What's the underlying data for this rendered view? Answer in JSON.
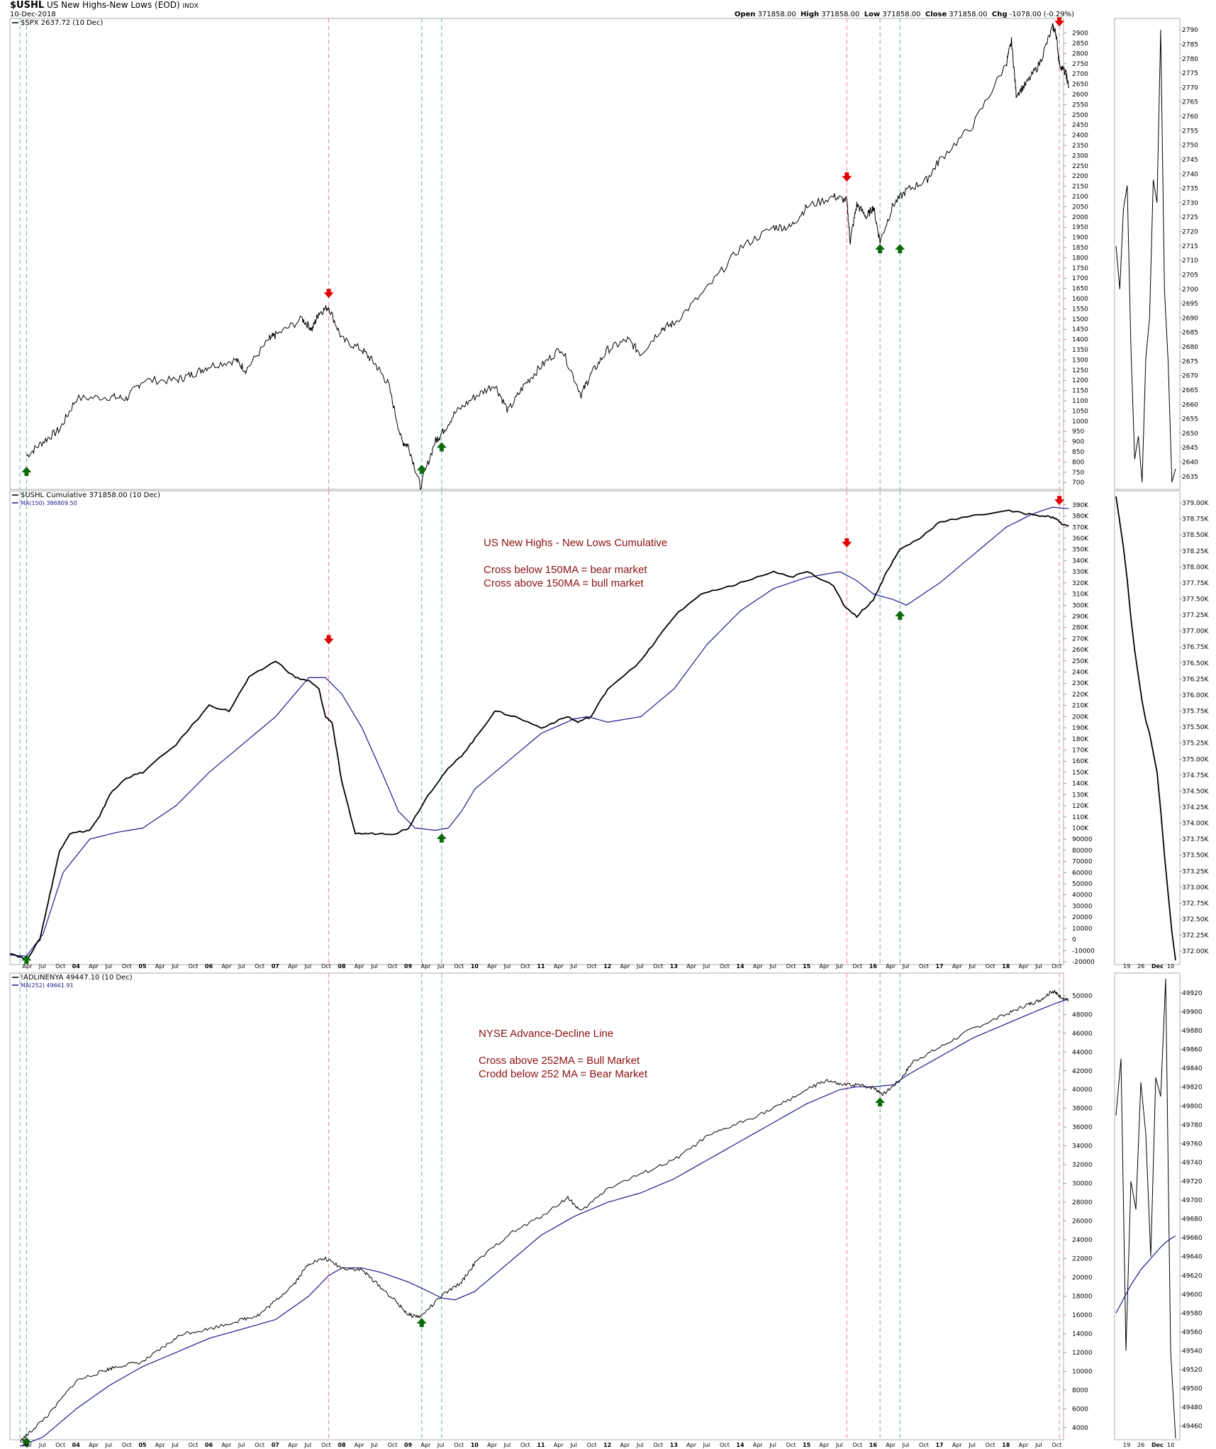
{
  "header": {
    "symbol": "$USHL",
    "name": "US New Highs-New Lows (EOD)",
    "exchange": "INDX",
    "date": "10-Dec-2018",
    "open_label": "Open",
    "open": "371858.00",
    "high_label": "High",
    "high": "371858.00",
    "low_label": "Low",
    "low": "371858.00",
    "close_label": "Close",
    "close": "371858.00",
    "chg_label": "Chg",
    "chg": "-1078.00 (-0.29%)"
  },
  "legends": {
    "p1": "$SPX 2637.72 (10 Dec)",
    "p2a": "$USHL Cumulative 371858.00 (10 Dec)",
    "p2b": "MA(150) 386809.50",
    "p3a": "!ADLINENYA 49447.10 (10 Dec)",
    "p3b": "MA(252) 49661.91"
  },
  "annotations": {
    "p2": [
      "US New Highs - New Lows Cumulative",
      "",
      "Cross below 150MA =  bear market",
      "Cross above 150MA = bull market"
    ],
    "p3": [
      "NYSE Advance-Decline Line",
      "",
      "Cross above 252MA = Bull Market",
      "Crodd below 252 MA = Bear Market"
    ]
  },
  "colors": {
    "price": "#000000",
    "ma": "#1a1a8c",
    "red_line": "#e08a8a",
    "blue_line": "#6fa9b4",
    "up_arrow": "#0b6a0b",
    "down_arrow": "#e00000",
    "annotation": "#8b1010"
  },
  "chart_data": [
    {
      "type": "line",
      "name": "SPX",
      "title": "$SPX 2637.72 (10 Dec)",
      "x": [
        2003.25,
        2003.5,
        2003.75,
        2004.0,
        2004.5,
        2004.75,
        2005.0,
        2005.5,
        2005.75,
        2006.0,
        2006.4,
        2006.55,
        2006.9,
        2007.0,
        2007.4,
        2007.55,
        2007.65,
        2007.8,
        2008.0,
        2008.3,
        2008.5,
        2008.7,
        2008.9,
        2009.0,
        2009.18,
        2009.4,
        2009.5,
        2009.7,
        2010.0,
        2010.3,
        2010.5,
        2010.75,
        2011.0,
        2011.3,
        2011.6,
        2011.75,
        2012.0,
        2012.3,
        2012.5,
        2012.8,
        2013.0,
        2013.5,
        2014.0,
        2014.5,
        2014.75,
        2015.0,
        2015.4,
        2015.6,
        2015.65,
        2015.75,
        2015.9,
        2016.0,
        2016.1,
        2016.3,
        2016.5,
        2016.8,
        2017.0,
        2017.5,
        2018.0,
        2018.08,
        2018.15,
        2018.3,
        2018.5,
        2018.7,
        2018.75,
        2018.8,
        2018.9,
        2018.94
      ],
      "y": [
        830,
        900,
        960,
        1110,
        1120,
        1110,
        1200,
        1200,
        1230,
        1270,
        1300,
        1250,
        1400,
        1420,
        1500,
        1450,
        1530,
        1560,
        1400,
        1350,
        1280,
        1180,
        900,
        880,
        680,
        900,
        940,
        1040,
        1120,
        1180,
        1050,
        1180,
        1270,
        1360,
        1130,
        1230,
        1350,
        1400,
        1330,
        1450,
        1480,
        1650,
        1850,
        1950,
        1950,
        2050,
        2100,
        2080,
        1880,
        2060,
        2000,
        2050,
        1880,
        2060,
        2130,
        2180,
        2280,
        2450,
        2750,
        2860,
        2600,
        2650,
        2750,
        2930,
        2900,
        2750,
        2700,
        2637.72
      ],
      "ylim": [
        680,
        2930
      ],
      "ticks": [
        700,
        750,
        800,
        850,
        900,
        950,
        1000,
        1050,
        1100,
        1150,
        1200,
        1250,
        1300,
        1350,
        1400,
        1450,
        1500,
        1550,
        1600,
        1650,
        1700,
        1750,
        1800,
        1850,
        1900,
        1950,
        2000,
        2050,
        2100,
        2150,
        2200,
        2250,
        2300,
        2350,
        2400,
        2450,
        2500,
        2550,
        2600,
        2650,
        2700,
        2750,
        2800,
        2850,
        2900
      ]
    },
    {
      "type": "line",
      "name": "USHL Cumulative",
      "title": "$USHL Cumulative 371858.00 (10 Dec)",
      "x": [
        2003.0,
        2003.25,
        2003.45,
        2003.6,
        2003.75,
        2003.9,
        2004.2,
        2004.35,
        2004.5,
        2004.75,
        2005.0,
        2005.5,
        2006.0,
        2006.3,
        2006.6,
        2007.0,
        2007.3,
        2007.5,
        2007.65,
        2007.75,
        2007.85,
        2008.0,
        2008.2,
        2008.5,
        2008.8,
        2009.0,
        2009.3,
        2009.55,
        2009.8,
        2010.0,
        2010.3,
        2010.6,
        2011.0,
        2011.4,
        2011.55,
        2011.75,
        2012.0,
        2012.5,
        2012.75,
        2013.0,
        2013.4,
        2013.75,
        2014.0,
        2014.5,
        2014.75,
        2015.0,
        2015.4,
        2015.55,
        2015.75,
        2016.0,
        2016.2,
        2016.4,
        2016.7,
        2017.0,
        2017.5,
        2018.0,
        2018.3,
        2018.6,
        2018.75,
        2018.85,
        2018.94
      ],
      "y": [
        -12000,
        -18000,
        0,
        40000,
        80000,
        95000,
        98000,
        110000,
        130000,
        145000,
        150000,
        175000,
        210000,
        205000,
        235000,
        250000,
        235000,
        232000,
        225000,
        200000,
        195000,
        140000,
        95000,
        95000,
        95000,
        100000,
        130000,
        150000,
        165000,
        180000,
        205000,
        200000,
        190000,
        200000,
        195000,
        200000,
        225000,
        250000,
        270000,
        290000,
        310000,
        315000,
        320000,
        330000,
        325000,
        330000,
        318000,
        300000,
        290000,
        305000,
        330000,
        350000,
        360000,
        375000,
        380000,
        385000,
        382000,
        380000,
        378000,
        372000,
        371858
      ],
      "ylim": [
        -20000,
        395000
      ],
      "ticks": [
        -20000,
        -10000,
        0,
        10000,
        20000,
        30000,
        40000,
        50000,
        60000,
        70000,
        80000,
        90000,
        100000,
        110000,
        120000,
        130000,
        140000,
        150000,
        160000,
        170000,
        180000,
        190000,
        200000,
        210000,
        220000,
        230000,
        240000,
        250000,
        260000,
        270000,
        280000,
        290000,
        300000,
        310000,
        320000,
        330000,
        340000,
        350000,
        360000,
        370000,
        380000,
        390000
      ],
      "tick_labels": [
        "-20000",
        "-10000",
        "0",
        "10000",
        "20000",
        "30000",
        "40000",
        "50000",
        "60000",
        "70000",
        "80000",
        "90000",
        "100K",
        "110K",
        "120K",
        "130K",
        "140K",
        "150K",
        "160K",
        "170K",
        "180K",
        "190K",
        "200K",
        "210K",
        "220K",
        "230K",
        "240K",
        "250K",
        "260K",
        "270K",
        "280K",
        "290K",
        "300K",
        "310K",
        "320K",
        "330K",
        "340K",
        "350K",
        "360K",
        "370K",
        "380K",
        "390K"
      ],
      "ma": {
        "name": "MA(150)",
        "x": [
          2003.0,
          2003.25,
          2003.5,
          2003.8,
          2004.2,
          2004.6,
          2005.0,
          2005.5,
          2006.0,
          2006.5,
          2007.0,
          2007.5,
          2007.75,
          2008.0,
          2008.3,
          2008.6,
          2008.85,
          2009.1,
          2009.4,
          2009.6,
          2009.8,
          2010.0,
          2010.5,
          2011.0,
          2011.5,
          2011.7,
          2012.0,
          2012.5,
          2013.0,
          2013.5,
          2014.0,
          2014.5,
          2015.0,
          2015.5,
          2015.75,
          2016.0,
          2016.3,
          2016.5,
          2016.75,
          2017.0,
          2017.5,
          2018.0,
          2018.4,
          2018.7,
          2018.85,
          2018.94
        ],
        "y": [
          -14000,
          -15000,
          5000,
          60000,
          90000,
          96000,
          100000,
          120000,
          150000,
          175000,
          200000,
          235000,
          235000,
          220000,
          190000,
          150000,
          115000,
          100000,
          98000,
          100000,
          115000,
          135000,
          160000,
          185000,
          198000,
          200000,
          195000,
          200000,
          225000,
          265000,
          295000,
          315000,
          325000,
          330000,
          322000,
          310000,
          305000,
          300000,
          310000,
          320000,
          345000,
          370000,
          382000,
          388000,
          387000,
          386809
        ]
      }
    },
    {
      "type": "line",
      "name": "ADLINENYA",
      "title": "!ADLINENYA 49447.10 (10 Dec)",
      "x": [
        2003.15,
        2003.3,
        2003.6,
        2004.0,
        2004.4,
        2004.6,
        2005.0,
        2005.3,
        2005.6,
        2006.0,
        2006.5,
        2006.75,
        2007.0,
        2007.3,
        2007.5,
        2007.75,
        2008.0,
        2008.3,
        2008.5,
        2008.8,
        2009.0,
        2009.18,
        2009.5,
        2009.8,
        2010.0,
        2010.5,
        2011.0,
        2011.4,
        2011.6,
        2012.0,
        2012.5,
        2013.0,
        2013.5,
        2014.0,
        2014.5,
        2015.0,
        2015.3,
        2015.5,
        2015.75,
        2016.0,
        2016.15,
        2016.4,
        2016.6,
        2017.0,
        2017.5,
        2018.0,
        2018.3,
        2018.5,
        2018.7,
        2018.8,
        2018.94
      ],
      "y": [
        2500,
        3500,
        5500,
        9000,
        10000,
        10500,
        11000,
        12500,
        14000,
        14500,
        15500,
        16000,
        17500,
        19500,
        21500,
        22000,
        21000,
        20800,
        19500,
        17500,
        16000,
        15800,
        18000,
        19500,
        21500,
        24500,
        26500,
        28500,
        27000,
        29500,
        31000,
        32500,
        35000,
        36500,
        38000,
        40000,
        41000,
        40500,
        40500,
        40200,
        39500,
        41000,
        43000,
        44500,
        46500,
        48000,
        49000,
        49500,
        50500,
        50000,
        49447
      ],
      "ylim": [
        3000,
        51500
      ],
      "ticks": [
        4000,
        6000,
        8000,
        10000,
        12000,
        14000,
        16000,
        18000,
        20000,
        22000,
        24000,
        26000,
        28000,
        30000,
        32000,
        34000,
        36000,
        38000,
        40000,
        42000,
        44000,
        46000,
        48000,
        50000
      ],
      "ma": {
        "name": "MA(252)",
        "x": [
          2003.15,
          2003.5,
          2004.0,
          2004.5,
          2005.0,
          2005.5,
          2006.0,
          2006.5,
          2007.0,
          2007.5,
          2007.8,
          2008.0,
          2008.3,
          2008.6,
          2009.0,
          2009.3,
          2009.5,
          2009.7,
          2010.0,
          2010.5,
          2011.0,
          2011.5,
          2012.0,
          2012.5,
          2013.0,
          2013.5,
          2014.0,
          2014.5,
          2015.0,
          2015.5,
          2015.75,
          2016.0,
          2016.3,
          2016.5,
          2017.0,
          2017.5,
          2018.0,
          2018.5,
          2018.75,
          2018.94
        ],
        "y": [
          2000,
          3000,
          6000,
          8500,
          10500,
          12000,
          13500,
          14500,
          15500,
          18000,
          20200,
          21000,
          21000,
          20500,
          19500,
          18500,
          17800,
          17600,
          18500,
          21500,
          24500,
          26500,
          28000,
          29000,
          30500,
          32500,
          34500,
          36500,
          38500,
          40000,
          40300,
          40300,
          40500,
          41500,
          43500,
          45500,
          47000,
          48500,
          49200,
          49662
        ]
      }
    },
    {
      "type": "line",
      "name": "SPX recent (side panel)",
      "x_labels": [
        "19",
        "26",
        "Dec",
        "10"
      ],
      "ticks": [
        2635,
        2640,
        2645,
        2650,
        2655,
        2660,
        2665,
        2670,
        2675,
        2680,
        2685,
        2690,
        2695,
        2700,
        2705,
        2710,
        2715,
        2720,
        2725,
        2730,
        2735,
        2740,
        2745,
        2750,
        2755,
        2760,
        2765,
        2770,
        2775,
        2780,
        2785,
        2790
      ],
      "ylim": [
        2632,
        2792
      ],
      "y": [
        2715,
        2700,
        2728,
        2736,
        2680,
        2641,
        2649,
        2633,
        2676,
        2690,
        2738,
        2730,
        2790,
        2700,
        2675,
        2633,
        2637.72
      ]
    },
    {
      "type": "line",
      "name": "USHL recent (side panel)",
      "x_labels": [
        "19",
        "26",
        "Dec",
        "10"
      ],
      "ticks": [
        372000,
        372250,
        372500,
        372750,
        373000,
        373250,
        373500,
        373750,
        374000,
        374250,
        374500,
        374750,
        375000,
        375250,
        375500,
        375750,
        376000,
        376250,
        376500,
        376750,
        377000,
        377250,
        377500,
        377750,
        378000,
        378250,
        378500,
        378750,
        379000
      ],
      "tick_labels": [
        "372.00K",
        "372.25K",
        "372.50K",
        "372.75K",
        "373.00K",
        "373.25K",
        "373.50K",
        "373.75K",
        "374.00K",
        "374.25K",
        "374.50K",
        "374.75K",
        "375.00K",
        "375.25K",
        "375.50K",
        "375.75K",
        "376.00K",
        "376.25K",
        "376.50K",
        "376.75K",
        "377.00K",
        "377.25K",
        "377.50K",
        "377.75K",
        "378.00K",
        "378.25K",
        "378.50K",
        "378.75K",
        "379.00K"
      ],
      "ylim": [
        371858,
        379100
      ],
      "y": [
        379100,
        378700,
        378300,
        377800,
        377200,
        376700,
        376300,
        375900,
        375600,
        375400,
        375100,
        374800,
        374200,
        373500,
        372900,
        372300,
        371858
      ]
    },
    {
      "type": "line",
      "name": "ADLINE recent (side panel)",
      "x_labels": [
        "19",
        "26",
        "Dec",
        "10"
      ],
      "ticks": [
        49460,
        49480,
        49500,
        49520,
        49540,
        49560,
        49580,
        49600,
        49620,
        49640,
        49660,
        49680,
        49700,
        49720,
        49740,
        49760,
        49780,
        49800,
        49820,
        49840,
        49860,
        49880,
        49900,
        49920
      ],
      "ylim": [
        49450,
        49935
      ],
      "y": [
        49790,
        49850,
        49540,
        49720,
        49690,
        49825,
        49770,
        49640,
        49830,
        49810,
        49935,
        49540,
        49447
      ],
      "ma_y": [
        49580,
        49590,
        49600,
        49610,
        49618,
        49626,
        49632,
        49638,
        49644,
        49650,
        49655,
        49659,
        49662
      ]
    }
  ],
  "x_axis": {
    "labels": [
      "Apr",
      "Jul",
      "Oct",
      "04",
      "Apr",
      "Jul",
      "Oct",
      "05",
      "Apr",
      "Jul",
      "Oct",
      "06",
      "Apr",
      "Jul",
      "Oct",
      "07",
      "Apr",
      "Jul",
      "Oct",
      "08",
      "Apr",
      "Jul",
      "Oct",
      "09",
      "Apr",
      "Jul",
      "Oct",
      "10",
      "Apr",
      "Jul",
      "Oct",
      "11",
      "Apr",
      "Jul",
      "Oct",
      "12",
      "Apr",
      "Jul",
      "Oct",
      "13",
      "Apr",
      "Jul",
      "Oct",
      "14",
      "Apr",
      "Jul",
      "Oct",
      "15",
      "Apr",
      "Jul",
      "Oct",
      "16",
      "Apr",
      "Jul",
      "Oct",
      "17",
      "Apr",
      "Jul",
      "Oct",
      "18",
      "Apr",
      "Jul",
      "Oct"
    ],
    "values": [
      2003.25,
      2003.5,
      2003.75,
      2004,
      2004.25,
      2004.5,
      2004.75,
      2005,
      2005.25,
      2005.5,
      2005.75,
      2006,
      2006.25,
      2006.5,
      2006.75,
      2007,
      2007.25,
      2007.5,
      2007.75,
      2008,
      2008.25,
      2008.5,
      2008.75,
      2009,
      2009.25,
      2009.5,
      2009.75,
      2010,
      2010.25,
      2010.5,
      2010.75,
      2011,
      2011.25,
      2011.5,
      2011.75,
      2012,
      2012.25,
      2012.5,
      2012.75,
      2013,
      2013.25,
      2013.5,
      2013.75,
      2014,
      2014.25,
      2014.5,
      2014.75,
      2015,
      2015.25,
      2015.5,
      2015.75,
      2016,
      2016.25,
      2016.5,
      2016.75,
      2017,
      2017.25,
      2017.5,
      2017.75,
      2018,
      2018.25,
      2018.5,
      2018.75
    ]
  },
  "markers": {
    "red_lines": [
      2007.8,
      2015.6,
      2018.8
    ],
    "blue_lines": [
      2003.15,
      2003.25,
      2009.2,
      2009.5,
      2016.1,
      2016.4
    ],
    "spx_down": [
      [
        2007.8,
        1620
      ],
      [
        2015.6,
        2190
      ],
      [
        2018.8,
        2950
      ]
    ],
    "spx_up": [
      [
        2003.25,
        760
      ],
      [
        2009.2,
        770
      ],
      [
        2009.5,
        880
      ],
      [
        2016.1,
        1850
      ],
      [
        2016.4,
        1850
      ]
    ],
    "ushl_down": [
      [
        2007.8,
        268000
      ],
      [
        2015.6,
        355000
      ],
      [
        2018.8,
        393000
      ]
    ],
    "ushl_up": [
      [
        2003.25,
        -17000
      ],
      [
        2009.5,
        92000
      ],
      [
        2016.4,
        292000
      ]
    ],
    "adl_up": [
      [
        2003.25,
        2600
      ],
      [
        2009.2,
        15300
      ],
      [
        2016.1,
        38800
      ]
    ]
  }
}
